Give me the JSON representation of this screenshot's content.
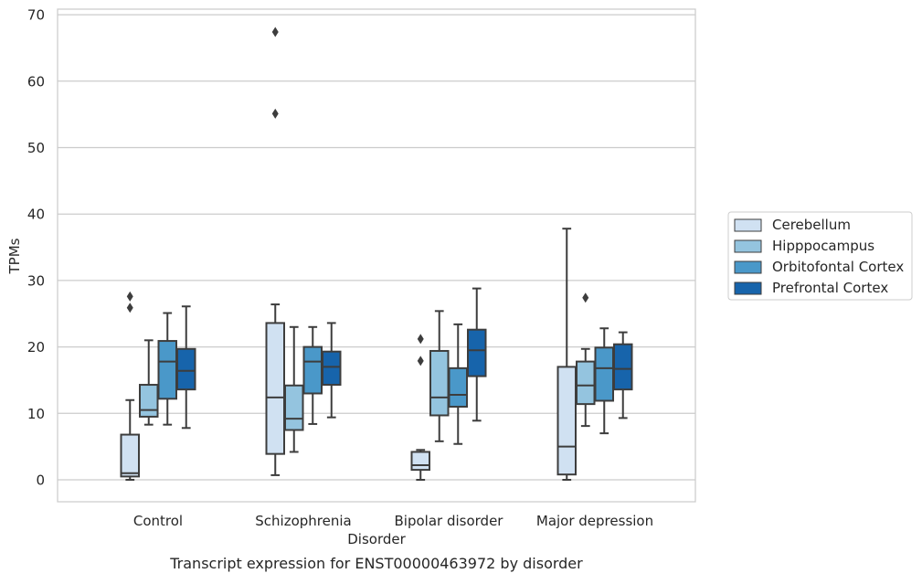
{
  "chart_data": {
    "type": "box",
    "title": "",
    "caption": "Transcript expression for ENST00000463972 by disorder",
    "xlabel": "Disorder",
    "ylabel": "TPMs",
    "ylim": [
      -3.2,
      71
    ],
    "yticks": [
      0,
      10,
      20,
      30,
      40,
      50,
      60,
      70
    ],
    "grid": "horizontal",
    "legend_position": "right",
    "categories": [
      "Control",
      "Schizophrenia",
      "Bipolar disorder",
      "Major depression"
    ],
    "series": [
      {
        "name": "Cerebellum",
        "color": "#d0e1f2",
        "boxes": [
          {
            "whisker_low": 0.0,
            "q1": 0.5,
            "median": 1.0,
            "q3": 6.8,
            "whisker_high": 12.0,
            "outliers": [
              27.6,
              25.9
            ]
          },
          {
            "whisker_low": 0.7,
            "q1": 3.9,
            "median": 12.4,
            "q3": 23.6,
            "whisker_high": 26.4,
            "outliers": [
              67.4,
              55.1
            ]
          },
          {
            "whisker_low": 0.0,
            "q1": 1.5,
            "median": 2.2,
            "q3": 4.2,
            "whisker_high": 4.5,
            "outliers": [
              21.2,
              17.9
            ]
          },
          {
            "whisker_low": 0.0,
            "q1": 0.8,
            "median": 5.0,
            "q3": 17.0,
            "whisker_high": 37.8,
            "outliers": []
          }
        ]
      },
      {
        "name": "Hipppocampus",
        "color": "#94c4df",
        "boxes": [
          {
            "whisker_low": 8.3,
            "q1": 9.5,
            "median": 10.5,
            "q3": 14.3,
            "whisker_high": 21.0,
            "outliers": []
          },
          {
            "whisker_low": 4.2,
            "q1": 7.5,
            "median": 9.2,
            "q3": 14.2,
            "whisker_high": 23.0,
            "outliers": []
          },
          {
            "whisker_low": 5.8,
            "q1": 9.7,
            "median": 12.4,
            "q3": 19.4,
            "whisker_high": 25.4,
            "outliers": []
          },
          {
            "whisker_low": 8.1,
            "q1": 11.4,
            "median": 14.2,
            "q3": 17.8,
            "whisker_high": 19.7,
            "outliers": [
              27.4
            ]
          }
        ]
      },
      {
        "name": "Orbitofontal Cortex",
        "color": "#4a98c9",
        "boxes": [
          {
            "whisker_low": 8.3,
            "q1": 12.2,
            "median": 17.8,
            "q3": 20.9,
            "whisker_high": 25.1,
            "outliers": []
          },
          {
            "whisker_low": 8.4,
            "q1": 13.0,
            "median": 17.8,
            "q3": 20.0,
            "whisker_high": 23.0,
            "outliers": []
          },
          {
            "whisker_low": 5.4,
            "q1": 11.0,
            "median": 12.8,
            "q3": 16.8,
            "whisker_high": 23.4,
            "outliers": []
          },
          {
            "whisker_low": 7.0,
            "q1": 11.9,
            "median": 16.8,
            "q3": 19.9,
            "whisker_high": 22.8,
            "outliers": []
          }
        ]
      },
      {
        "name": "Prefrontal Cortex",
        "color": "#1764ab",
        "boxes": [
          {
            "whisker_low": 7.8,
            "q1": 13.6,
            "median": 16.4,
            "q3": 19.7,
            "whisker_high": 26.1,
            "outliers": []
          },
          {
            "whisker_low": 9.4,
            "q1": 14.3,
            "median": 17.0,
            "q3": 19.3,
            "whisker_high": 23.6,
            "outliers": []
          },
          {
            "whisker_low": 8.9,
            "q1": 15.6,
            "median": 19.5,
            "q3": 22.6,
            "whisker_high": 28.8,
            "outliers": []
          },
          {
            "whisker_low": 9.3,
            "q1": 13.6,
            "median": 16.7,
            "q3": 20.4,
            "whisker_high": 22.2,
            "outliers": []
          }
        ]
      }
    ]
  }
}
